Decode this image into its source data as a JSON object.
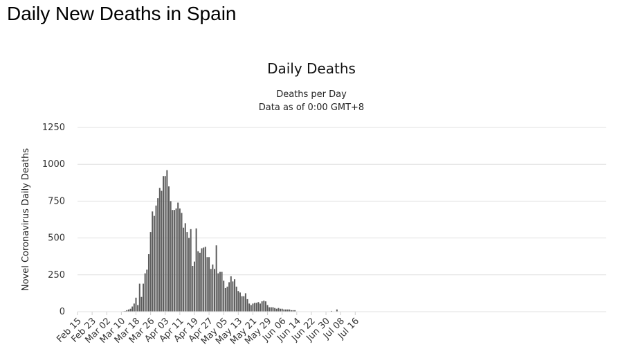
{
  "page": {
    "title": "Daily New Deaths in Spain"
  },
  "chart_data": {
    "type": "bar",
    "title": "Daily Deaths",
    "subtitle_lines": [
      "Deaths per Day",
      "Data as of 0:00 GMT+8"
    ],
    "xlabel": "",
    "ylabel": "Novel Coronavirus Daily Deaths",
    "ylim": [
      0,
      1250
    ],
    "yticks": [
      0,
      250,
      500,
      750,
      1000,
      1250
    ],
    "grid": true,
    "legend": "none",
    "bar_color": "#5c5c5c",
    "x_start": "Feb 15",
    "x_tick_labels": [
      "Feb 15",
      "Feb 23",
      "Mar 02",
      "Mar 10",
      "Mar 18",
      "Mar 26",
      "Apr 03",
      "Apr 11",
      "Apr 19",
      "Apr 27",
      "May 05",
      "May 13",
      "May 21",
      "May 29",
      "Jun 06",
      "Jun 14",
      "Jun 22",
      "Jun 30",
      "Jul 08",
      "Jul 16"
    ],
    "series": [
      {
        "values": [
          0,
          0,
          0,
          0,
          0,
          0,
          0,
          0,
          0,
          0,
          0,
          0,
          0,
          0,
          0,
          0,
          0,
          0,
          0,
          0,
          0,
          0,
          0,
          0,
          0,
          3,
          5,
          10,
          15,
          20,
          35,
          55,
          95,
          45,
          190,
          100,
          190,
          260,
          285,
          390,
          540,
          680,
          650,
          720,
          770,
          840,
          820,
          920,
          920,
          960,
          850,
          750,
          690,
          690,
          700,
          740,
          700,
          670,
          570,
          600,
          540,
          500,
          560,
          310,
          340,
          565,
          410,
          400,
          430,
          435,
          440,
          370,
          370,
          290,
          320,
          290,
          450,
          260,
          270,
          270,
          210,
          160,
          170,
          200,
          240,
          205,
          220,
          170,
          140,
          130,
          105,
          105,
          125,
          85,
          55,
          45,
          55,
          60,
          60,
          65,
          55,
          70,
          75,
          70,
          45,
          30,
          30,
          30,
          25,
          20,
          25,
          20,
          20,
          15,
          15,
          15,
          15,
          10,
          10,
          10,
          0,
          0,
          0,
          0,
          0,
          0,
          0,
          0,
          0,
          0,
          0,
          0,
          0,
          0,
          0,
          0,
          0,
          0,
          0,
          5,
          0,
          0,
          15,
          0,
          0,
          0,
          0,
          0,
          0,
          0,
          0,
          0,
          0,
          0,
          0,
          0,
          0,
          0,
          0,
          0,
          0,
          0,
          0,
          0,
          0,
          0
        ]
      }
    ]
  }
}
